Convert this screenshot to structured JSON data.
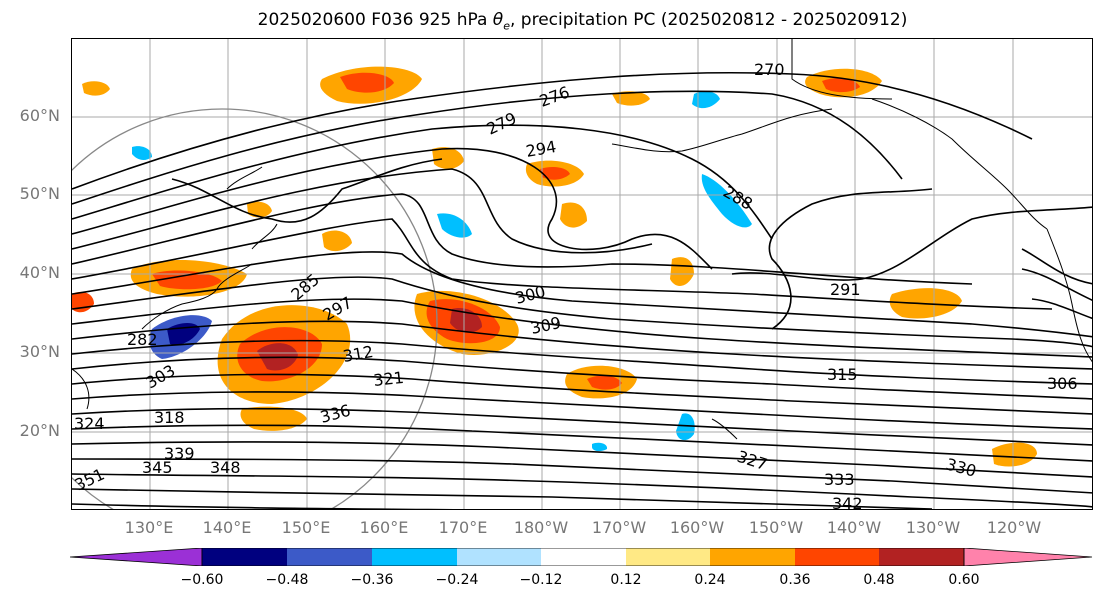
{
  "title_prefix": "2025020600 F036 925 hPa ",
  "title_symbol": "θe",
  "title_suffix": ", precipitation PC (2025020812 - 2025020912)",
  "lat_labels": [
    "60°N",
    "50°N",
    "40°N",
    "30°N",
    "20°N"
  ],
  "lon_labels": [
    "130°E",
    "140°E",
    "150°E",
    "160°E",
    "170°E",
    "180°W",
    "170°W",
    "160°W",
    "150°W",
    "140°W",
    "130°W",
    "120°W"
  ],
  "contour_labels": [
    "270",
    "276",
    "279",
    "282",
    "285",
    "288",
    "291",
    "294",
    "297",
    "300",
    "303",
    "306",
    "309",
    "312",
    "315",
    "318",
    "321",
    "324",
    "327",
    "330",
    "333",
    "336",
    "339",
    "342",
    "345",
    "348",
    "351"
  ],
  "colorbar": {
    "colors": [
      "#9b30d6",
      "#00007f",
      "#3c5ac8",
      "#00bfff",
      "#b0e2ff",
      "#ffffff",
      "#ffe985",
      "#ffa500",
      "#ff4500",
      "#b22222",
      "#ff82ab"
    ],
    "ticks": [
      "−0.60",
      "−0.48",
      "−0.36",
      "−0.24",
      "−0.12",
      "0.12",
      "0.24",
      "0.36",
      "0.48",
      "0.60"
    ]
  }
}
